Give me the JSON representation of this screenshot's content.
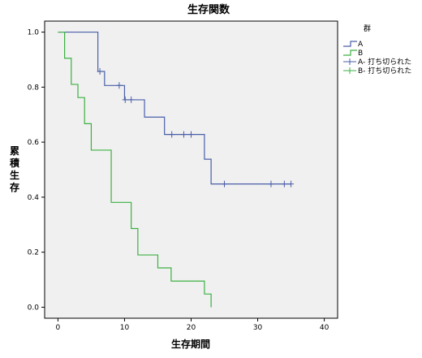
{
  "chart_data": {
    "type": "line",
    "title": "生存関数",
    "xlabel": "生存期間",
    "ylabel": "累積生存",
    "xlim": [
      -2,
      42
    ],
    "ylim": [
      -0.04,
      1.04
    ],
    "xticks": [
      0,
      10,
      20,
      30,
      40
    ],
    "yticks": [
      0.0,
      0.2,
      0.4,
      0.6,
      0.8,
      1.0
    ],
    "xtick_labels": [
      "0",
      "10",
      "20",
      "30",
      "40"
    ],
    "ytick_labels": [
      "0.0",
      "0.2",
      "0.4",
      "0.6",
      "0.8",
      "1.0"
    ],
    "legend": {
      "title": "群",
      "placement": "top-right",
      "entries": [
        {
          "label": "A",
          "kind": "step",
          "color": "#4a5fa8"
        },
        {
          "label": "B",
          "kind": "step",
          "color": "#3cb043"
        },
        {
          "label": "A- 打ち切られた",
          "kind": "censor",
          "color": "#4a5fa8"
        },
        {
          "label": "B- 打ち切られた",
          "kind": "censor",
          "color": "#3cb043"
        }
      ]
    },
    "series": [
      {
        "name": "A",
        "color": "#4a5fa8",
        "steps": [
          [
            0,
            1.0
          ],
          [
            6,
            0.857
          ],
          [
            7,
            0.806
          ],
          [
            10,
            0.754
          ],
          [
            13,
            0.691
          ],
          [
            16,
            0.628
          ],
          [
            22,
            0.538
          ],
          [
            23,
            0.448
          ],
          [
            35,
            0.448
          ]
        ],
        "censored": [
          [
            6.3,
            0.857
          ],
          [
            9.2,
            0.806
          ],
          [
            10.1,
            0.754
          ],
          [
            11.0,
            0.754
          ],
          [
            17.1,
            0.628
          ],
          [
            18.9,
            0.628
          ],
          [
            20.0,
            0.628
          ],
          [
            25.0,
            0.448
          ],
          [
            32.0,
            0.448
          ],
          [
            34.0,
            0.448
          ],
          [
            35.0,
            0.448
          ]
        ]
      },
      {
        "name": "B",
        "color": "#3cb043",
        "steps": [
          [
            0,
            1.0
          ],
          [
            1,
            0.905
          ],
          [
            2,
            0.81
          ],
          [
            3,
            0.762
          ],
          [
            4,
            0.667
          ],
          [
            5,
            0.571
          ],
          [
            8,
            0.381
          ],
          [
            11,
            0.286
          ],
          [
            12,
            0.19
          ],
          [
            15,
            0.143
          ],
          [
            17,
            0.095
          ],
          [
            22,
            0.048
          ],
          [
            23,
            0.0
          ]
        ],
        "censored": []
      }
    ]
  }
}
